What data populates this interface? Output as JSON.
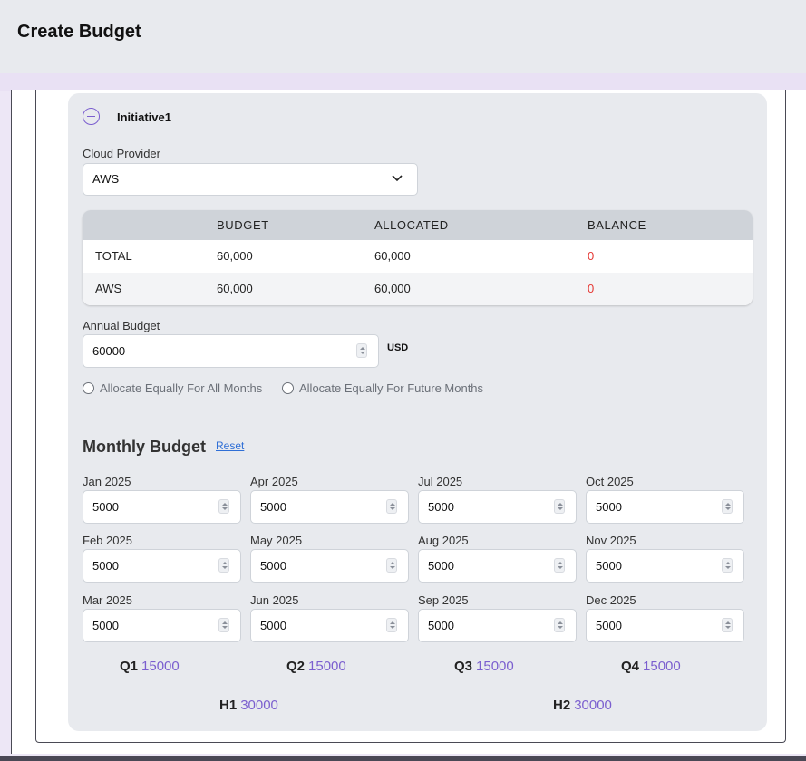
{
  "header": {
    "title": "Create Budget"
  },
  "initiative": {
    "name": "Initiative1",
    "cloud_provider_label": "Cloud Provider",
    "cloud_provider_value": "AWS"
  },
  "summary_table": {
    "columns": [
      "",
      "BUDGET",
      "ALLOCATED",
      "BALANCE"
    ],
    "rows": [
      [
        "TOTAL",
        "60,000",
        "60,000",
        "0"
      ],
      [
        "AWS",
        "60,000",
        "60,000",
        "0"
      ]
    ]
  },
  "annual_budget": {
    "label": "Annual Budget",
    "value": "60000",
    "currency": "USD"
  },
  "allocation_options": [
    {
      "label": "Allocate Equally For All Months"
    },
    {
      "label": "Allocate Equally For Future Months"
    }
  ],
  "monthly": {
    "title": "Monthly Budget",
    "reset_label": "Reset",
    "months": [
      {
        "label": "Jan 2025",
        "value": "5000"
      },
      {
        "label": "Feb 2025",
        "value": "5000"
      },
      {
        "label": "Mar 2025",
        "value": "5000"
      },
      {
        "label": "Apr 2025",
        "value": "5000"
      },
      {
        "label": "May 2025",
        "value": "5000"
      },
      {
        "label": "Jun 2025",
        "value": "5000"
      },
      {
        "label": "Jul 2025",
        "value": "5000"
      },
      {
        "label": "Aug 2025",
        "value": "5000"
      },
      {
        "label": "Sep 2025",
        "value": "5000"
      },
      {
        "label": "Oct 2025",
        "value": "5000"
      },
      {
        "label": "Nov 2025",
        "value": "5000"
      },
      {
        "label": "Dec 2025",
        "value": "5000"
      }
    ],
    "quarters": [
      {
        "label": "Q1",
        "value": "15000"
      },
      {
        "label": "Q2",
        "value": "15000"
      },
      {
        "label": "Q3",
        "value": "15000"
      },
      {
        "label": "Q4",
        "value": "15000"
      }
    ],
    "halves": [
      {
        "label": "H1",
        "value": "30000"
      },
      {
        "label": "H2",
        "value": "30000"
      }
    ]
  },
  "colors": {
    "accent": "#7b5fcf",
    "negative": "#e53935",
    "link": "#2f6fd6"
  }
}
